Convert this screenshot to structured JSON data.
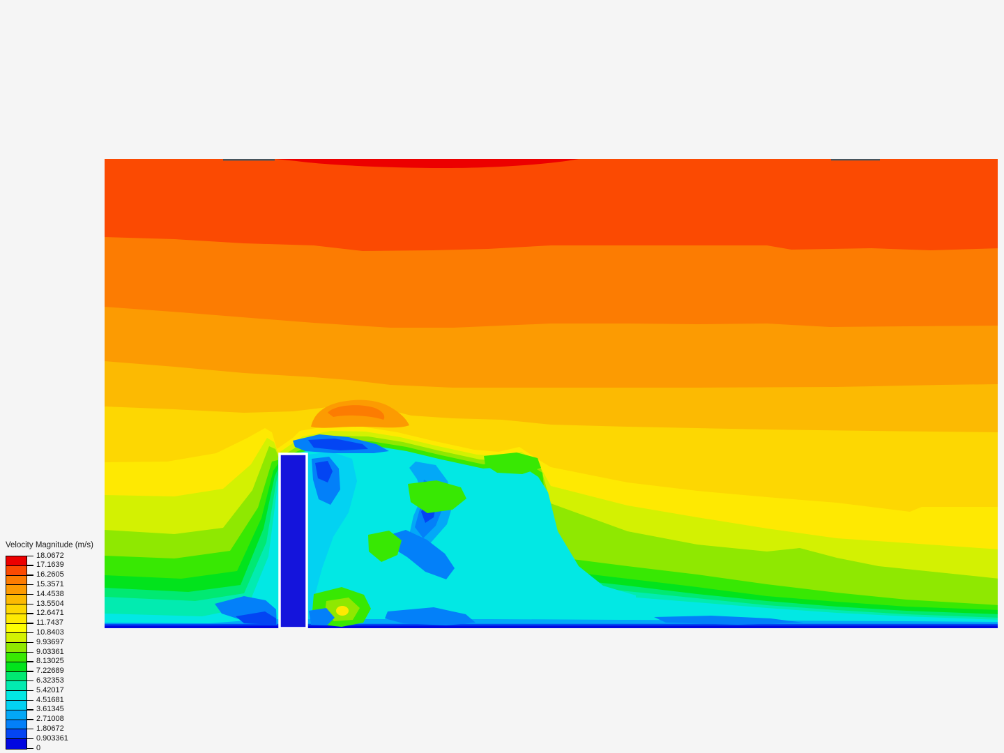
{
  "background_color": "#F5F5F5",
  "legend": {
    "title": "Velocity Magnitude (m/s)",
    "tick_labels": [
      "18.0672",
      "17.1639",
      "16.2605",
      "15.3571",
      "14.4538",
      "13.5504",
      "12.6471",
      "11.7437",
      "10.8403",
      "9.93697",
      "9.03361",
      "8.13025",
      "7.22689",
      "6.32353",
      "5.42017",
      "4.51681",
      "3.61345",
      "2.71008",
      "1.80672",
      "0.903361",
      "0"
    ],
    "band_colors_top_to_bottom": [
      "#EC0000",
      "#FB4A02",
      "#FC7C02",
      "#FC9B02",
      "#FCBA02",
      "#FDD702",
      "#FEE902",
      "#FEFE02",
      "#D3F102",
      "#8FE801",
      "#38E803",
      "#02E31C",
      "#01E972",
      "#02EBB0",
      "#02E8E4",
      "#03D2F2",
      "#03A8F7",
      "#0380F9",
      "#0345F3",
      "#0207E0"
    ]
  },
  "chart_data": {
    "type": "heatmap",
    "subtype": "filled-contour-cfd",
    "title": "Velocity Magnitude (m/s)",
    "variable": "Velocity Magnitude",
    "units": "m/s",
    "value_range": [
      0,
      18.0672
    ],
    "contour_levels": [
      0,
      0.903361,
      1.80672,
      2.71008,
      3.61345,
      4.51681,
      5.42017,
      6.32353,
      7.22689,
      8.13025,
      9.03361,
      9.93697,
      10.8403,
      11.7437,
      12.6471,
      13.5504,
      14.4538,
      15.3571,
      16.2605,
      17.1639,
      18.0672
    ],
    "palette_low_to_high": [
      "#0207E0",
      "#0345F3",
      "#0380F9",
      "#03A8F7",
      "#03D2F2",
      "#02E8E4",
      "#02EBB0",
      "#01E972",
      "#02E31C",
      "#38E803",
      "#8FE801",
      "#D3F102",
      "#FEFE02",
      "#FEE902",
      "#FDD702",
      "#FCBA02",
      "#FC9B02",
      "#FC7C02",
      "#FB4A02",
      "#EC0000"
    ],
    "legend_position": "bottom-left",
    "grid": false,
    "scene": {
      "description": "Side-view CFD contour slice of wind flow over a wall-mounted rectangular obstacle. Horizontal high-speed bands (red/orange ~15-18 m/s) near the top, boundary-layer gradient of yellow/green toward the ground, stagnant dark-blue region on the obstacle and a turbulent cyan/blue low-speed wake (~0-6 m/s) behind it that recovers downstream in diagonal green/yellow bands.",
      "obstacle_fill": "#1414DC",
      "obstacle_outline": "#FFFFFF",
      "ground_color": "#0207E0",
      "top_edge_artifact_color": "#47555E",
      "features": [
        "thin red band (>17.16 m/s) along top edge, mid-span",
        "stratified orange-to-yellow freestream bands",
        "contours converging at obstacle top-left corner",
        "orange acceleration dome above separated shear layer",
        "dark-blue separation bubble on obstacle crest",
        "cyan recirculating wake with blue vortices and green islands",
        "yellow-cored green spot at wake ground level",
        "dark blue ground line across the domain"
      ]
    }
  }
}
